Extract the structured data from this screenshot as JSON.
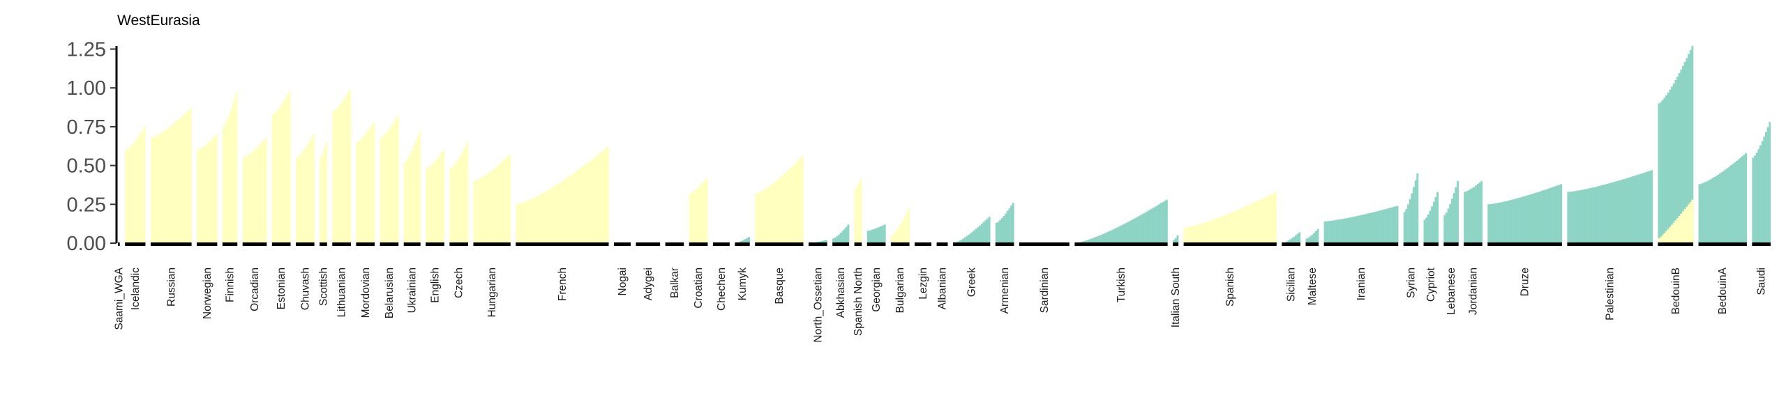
{
  "chart_data": {
    "type": "bar",
    "title": "WestEurasia",
    "xlabel": "",
    "ylabel": "",
    "ylim": [
      0,
      1.27
    ],
    "yticks": [
      "0.00",
      "0.25",
      "0.50",
      "0.75",
      "1.00",
      "1.25"
    ],
    "grid": false,
    "colors": {
      "yellow": "#ffffbf",
      "teal": "#8dd4c5",
      "baseline": "#000000"
    },
    "populations": [
      {
        "label": "Saami_WGA",
        "n": 1,
        "color": "yellow",
        "min": 0,
        "max": 0
      },
      {
        "label": "Icelandic",
        "n": 11,
        "color": "yellow",
        "min": 0.6,
        "max": 0.75
      },
      {
        "label": "Russian",
        "n": 22,
        "color": "yellow",
        "min": 0.68,
        "max": 0.87
      },
      {
        "label": "Norwegian",
        "n": 11,
        "color": "yellow",
        "min": 0.6,
        "max": 0.7
      },
      {
        "label": "Finnish",
        "n": 8,
        "color": "yellow",
        "min": 0.75,
        "max": 0.97
      },
      {
        "label": "Orcadian",
        "n": 13,
        "color": "yellow",
        "min": 0.55,
        "max": 0.68
      },
      {
        "label": "Estonian",
        "n": 10,
        "color": "yellow",
        "min": 0.83,
        "max": 0.98
      },
      {
        "label": "Chuvash",
        "n": 10,
        "color": "yellow",
        "min": 0.55,
        "max": 0.7
      },
      {
        "label": "Scottish",
        "n": 4,
        "color": "yellow",
        "min": 0.55,
        "max": 0.65
      },
      {
        "label": "Lithuanian",
        "n": 10,
        "color": "yellow",
        "min": 0.85,
        "max": 0.99
      },
      {
        "label": "Mordovian",
        "n": 10,
        "color": "yellow",
        "min": 0.65,
        "max": 0.78
      },
      {
        "label": "Belarusian",
        "n": 10,
        "color": "yellow",
        "min": 0.68,
        "max": 0.82
      },
      {
        "label": "Ukrainian",
        "n": 9,
        "color": "yellow",
        "min": 0.52,
        "max": 0.72
      },
      {
        "label": "English",
        "n": 10,
        "color": "yellow",
        "min": 0.48,
        "max": 0.6
      },
      {
        "label": "Czech",
        "n": 10,
        "color": "yellow",
        "min": 0.48,
        "max": 0.65
      },
      {
        "label": "Hungarian",
        "n": 20,
        "color": "yellow",
        "min": 0.4,
        "max": 0.57
      },
      {
        "label": "French",
        "n": 50,
        "color": "yellow",
        "min": 0.25,
        "max": 0.62
      },
      {
        "label": "Nogai",
        "n": 9,
        "color": "yellow",
        "min": 0,
        "max": 0
      },
      {
        "label": "Adygei",
        "n": 13,
        "color": "yellow",
        "min": 0,
        "max": 0
      },
      {
        "label": "Balkar",
        "n": 10,
        "color": "yellow",
        "min": 0,
        "max": 0
      },
      {
        "label": "Croatian",
        "n": 10,
        "color": "yellow",
        "min": 0.32,
        "max": 0.42
      },
      {
        "label": "Chechen",
        "n": 9,
        "color": "yellow",
        "min": 0,
        "max": 0
      },
      {
        "label": "Kumyk",
        "n": 8,
        "color": "teal",
        "min": 0,
        "max": 0.04
      },
      {
        "label": "Basque",
        "n": 26,
        "color": "yellow",
        "min": 0.32,
        "max": 0.56
      },
      {
        "label": "North_Ossetian",
        "n": 10,
        "color": "teal",
        "min": 0,
        "max": 0.02
      },
      {
        "label": "Abkhasian",
        "n": 9,
        "color": "teal",
        "min": 0.03,
        "max": 0.12
      },
      {
        "label": "Spanish North",
        "n": 4,
        "color": "yellow",
        "min": 0.35,
        "max": 0.42
      },
      {
        "label": "Georgian",
        "n": 10,
        "color": "teal",
        "min": 0.08,
        "max": 0.12
      },
      {
        "label": "Bulgarian",
        "n": 10,
        "color": "yellow",
        "min": 0.05,
        "max": 0.22
      },
      {
        "label": "Lezgin",
        "n": 9,
        "color": "teal",
        "min": 0,
        "max": 0
      },
      {
        "label": "Albanian",
        "n": 6,
        "color": "teal",
        "min": 0,
        "max": 0
      },
      {
        "label": "Greek",
        "n": 20,
        "color": "teal",
        "min": 0,
        "max": 0.17
      },
      {
        "label": "Armenian",
        "n": 10,
        "color": "teal",
        "min": 0.13,
        "max": 0.26
      },
      {
        "label": "Sardinian",
        "n": 27,
        "color": "teal",
        "min": 0,
        "max": 0
      },
      {
        "label": "Turkish",
        "n": 50,
        "color": "teal",
        "min": 0,
        "max": 0.28
      },
      {
        "label": "Italian South",
        "n": 3,
        "color": "teal",
        "min": 0.02,
        "max": 0.05
      },
      {
        "label": "Spanish",
        "n": 50,
        "color": "yellow",
        "min": 0.1,
        "max": 0.33
      },
      {
        "label": "Sicilian",
        "n": 10,
        "color": "teal",
        "min": 0,
        "max": 0.07
      },
      {
        "label": "Maltese",
        "n": 7,
        "color": "teal",
        "min": 0.03,
        "max": 0.09
      },
      {
        "label": "Iranian",
        "n": 40,
        "color": "teal",
        "min": 0.14,
        "max": 0.24
      },
      {
        "label": "Syrian",
        "n": 8,
        "color": "teal",
        "min": 0.2,
        "max": 0.45
      },
      {
        "label": "Cypriot",
        "n": 8,
        "color": "teal",
        "min": 0.15,
        "max": 0.33
      },
      {
        "label": "Lebanese",
        "n": 8,
        "color": "teal",
        "min": 0.18,
        "max": 0.4
      },
      {
        "label": "Jordanian",
        "n": 10,
        "color": "teal",
        "min": 0.33,
        "max": 0.4
      },
      {
        "label": "Druze",
        "n": 40,
        "color": "teal",
        "min": 0.25,
        "max": 0.38
      },
      {
        "label": "Palestinian",
        "n": 46,
        "color": "teal",
        "min": 0.33,
        "max": 0.47
      },
      {
        "label": "BedouinB",
        "n": 19,
        "color": "teal",
        "min": 0.9,
        "max": 1.27
      },
      {
        "label": "BedouinA",
        "n": 26,
        "color": "teal",
        "min": 0.38,
        "max": 0.58
      },
      {
        "label": "Saudi",
        "n": 10,
        "color": "teal",
        "min": 0.55,
        "max": 0.78
      }
    ],
    "overlay": {
      "label": "BedouinB",
      "color": "yellow",
      "min": 0.03,
      "max": 0.28
    }
  }
}
